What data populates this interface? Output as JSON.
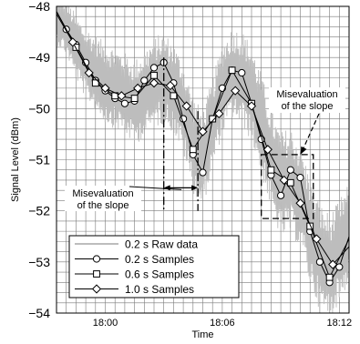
{
  "chart_data": {
    "type": "line",
    "xlabel": "Time",
    "ylabel": "Signal Level (dBm)",
    "xlim": [
      "17:57:30",
      "18:12:30"
    ],
    "ylim": [
      -54,
      -48
    ],
    "x_ticks": [
      "18:00",
      "18:06",
      "18:12"
    ],
    "y_ticks": [
      "-48",
      "-49",
      "-50",
      "-51",
      "-52",
      "-53",
      "-54"
    ],
    "grid": true,
    "legend_position": "bottom-left",
    "series": [
      {
        "name": "0.2 s Raw data",
        "color": "#bdbdbd",
        "marker": "none",
        "x": [
          "17:57:30",
          "17:58:00",
          "17:58:30",
          "17:59:00",
          "17:59:30",
          "18:00:00",
          "18:00:30",
          "18:01:00",
          "18:01:30",
          "18:02:00",
          "18:02:30",
          "18:03:00",
          "18:03:30",
          "18:04:00",
          "18:04:30",
          "18:05:00",
          "18:05:30",
          "18:06:00",
          "18:06:30",
          "18:07:00",
          "18:07:30",
          "18:08:00",
          "18:08:30",
          "18:09:00",
          "18:09:30",
          "18:10:00",
          "18:10:30",
          "18:11:00",
          "18:11:30",
          "18:12:00",
          "18:12:30"
        ],
        "y": [
          -48.2,
          -48.4,
          -48.8,
          -49.1,
          -49.3,
          -49.5,
          -49.6,
          -49.7,
          -49.9,
          -49.7,
          -49.5,
          -49.4,
          -49.6,
          -50.0,
          -50.7,
          -51.0,
          -50.3,
          -49.6,
          -49.3,
          -49.4,
          -49.7,
          -50.3,
          -51.0,
          -51.5,
          -51.4,
          -51.7,
          -52.4,
          -52.9,
          -53.1,
          -52.8,
          -52.4
        ],
        "envelope": [
          1.1,
          1.1,
          1.3,
          1.4,
          1.5,
          1.6,
          1.6,
          1.6,
          1.7,
          1.7,
          1.8,
          1.8,
          1.8,
          1.8,
          1.9,
          1.9,
          1.8,
          1.8,
          1.8,
          1.9,
          1.9,
          2.0,
          2.0,
          2.1,
          2.1,
          2.1,
          2.1,
          2.1,
          2.1,
          2.0,
          2.0
        ]
      },
      {
        "name": "0.2 s Samples",
        "color": "#000000",
        "marker": "circle",
        "x": [
          "17:57:30",
          "17:58:00",
          "17:58:30",
          "17:59:00",
          "17:59:30",
          "18:00:00",
          "18:00:30",
          "18:01:00",
          "18:01:30",
          "18:02:00",
          "18:02:30",
          "18:03:00",
          "18:03:30",
          "18:04:00",
          "18:04:30",
          "18:05:00",
          "18:05:30",
          "18:06:00",
          "18:06:30",
          "18:07:00",
          "18:07:30",
          "18:08:00",
          "18:08:30",
          "18:09:00",
          "18:09:30",
          "18:10:00",
          "18:10:30",
          "18:11:00",
          "18:11:30",
          "18:12:00",
          "18:12:30"
        ],
        "y": [
          -48.1,
          -48.45,
          -48.75,
          -49.1,
          -49.45,
          -49.65,
          -49.8,
          -49.9,
          -49.85,
          -49.45,
          -49.2,
          -49.1,
          -49.5,
          -50.2,
          -50.9,
          -51.25,
          -50.2,
          -49.6,
          -49.25,
          -49.3,
          -49.9,
          -50.6,
          -51.3,
          -51.7,
          -51.2,
          -51.35,
          -52.4,
          -53.0,
          -53.4,
          -53.1,
          -52.5
        ]
      },
      {
        "name": "0.6 s Samples",
        "color": "#000000",
        "marker": "square",
        "x": [
          "17:57:30",
          "17:58:30",
          "17:59:30",
          "18:00:30",
          "18:01:30",
          "18:02:30",
          "18:03:30",
          "18:04:30",
          "18:05:30",
          "18:06:30",
          "18:07:30",
          "18:08:30",
          "18:09:30",
          "18:10:30",
          "18:11:30",
          "18:12:30"
        ],
        "y": [
          -48.1,
          -48.8,
          -49.5,
          -49.75,
          -49.8,
          -49.35,
          -49.75,
          -50.8,
          -50.2,
          -49.25,
          -49.9,
          -51.2,
          -51.45,
          -52.3,
          -53.3,
          -52.55
        ]
      },
      {
        "name": "1.0 s Samples",
        "color": "#000000",
        "marker": "diamond",
        "x": [
          "17:57:30",
          "17:58:20",
          "17:59:10",
          "18:00:00",
          "18:00:50",
          "18:01:40",
          "18:02:30",
          "18:03:20",
          "18:04:10",
          "18:05:00",
          "18:05:50",
          "18:06:40",
          "18:07:30",
          "18:08:20",
          "18:09:10",
          "18:10:00",
          "18:10:50",
          "18:11:40",
          "18:12:30"
        ],
        "y": [
          -48.15,
          -48.7,
          -49.3,
          -49.6,
          -49.75,
          -49.6,
          -49.5,
          -49.55,
          -49.95,
          -50.45,
          -50.1,
          -49.65,
          -49.95,
          -50.8,
          -51.4,
          -51.85,
          -52.55,
          -53.05,
          -52.7
        ]
      }
    ],
    "annotations": [
      {
        "text": [
          "Misevaluation",
          "of the slope"
        ],
        "label_position": "lower-middle-left",
        "box": {
          "x": [
            "18:03:00",
            "18:04:45"
          ],
          "y": [
            -49.0,
            -52.0
          ]
        },
        "arrow_end": {
          "x": "18:04:00",
          "y": -51.7
        }
      },
      {
        "text": [
          "Misevaluation",
          "of the slope"
        ],
        "label_position": "upper-right",
        "box": {
          "x": [
            "18:08:00",
            "18:10:40"
          ],
          "y": [
            -50.9,
            -52.15
          ]
        },
        "arrow_end": {
          "x": "18:10:00",
          "y": -50.9
        }
      }
    ]
  }
}
